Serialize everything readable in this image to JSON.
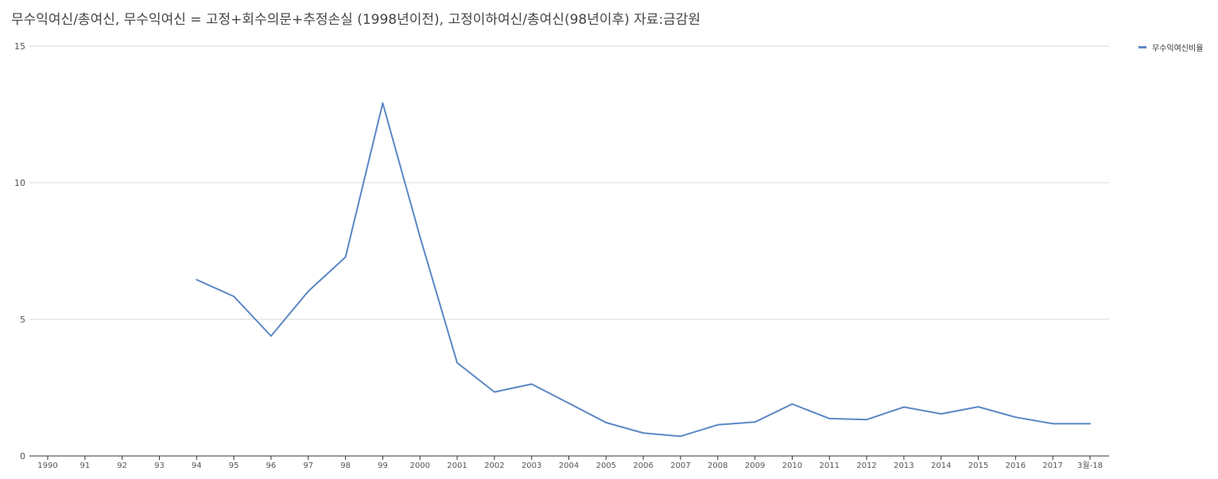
{
  "title": "무수익여신/총여신, 무수익여신 = 고정+회수의문+추정손실 (1998년이전), 고정이하여신/총여신(98년이후)  자료:금감원",
  "chart_data": {
    "type": "line",
    "categories": [
      "1990",
      "91",
      "92",
      "93",
      "94",
      "95",
      "96",
      "97",
      "98",
      "99",
      "2000",
      "2001",
      "2002",
      "2003",
      "2004",
      "2005",
      "2006",
      "2007",
      "2008",
      "2009",
      "2010",
      "2011",
      "2012",
      "2013",
      "2014",
      "2015",
      "2016",
      "2017",
      "3월-18"
    ],
    "series": [
      {
        "name": "무수익여신비율",
        "color": "#5b87c5",
        "values": [
          null,
          null,
          null,
          null,
          6.45,
          5.84,
          4.39,
          6.03,
          7.28,
          12.91,
          8.03,
          3.41,
          2.34,
          2.63,
          1.93,
          1.22,
          0.84,
          0.72,
          1.14,
          1.24,
          1.9,
          1.37,
          1.33,
          1.79,
          1.54,
          1.8,
          1.42,
          1.18,
          1.18
        ]
      }
    ],
    "ylim": [
      0,
      15
    ],
    "yticks": [
      "0",
      "5",
      "10",
      "15"
    ],
    "grid": true,
    "legend_position": "top-right"
  }
}
